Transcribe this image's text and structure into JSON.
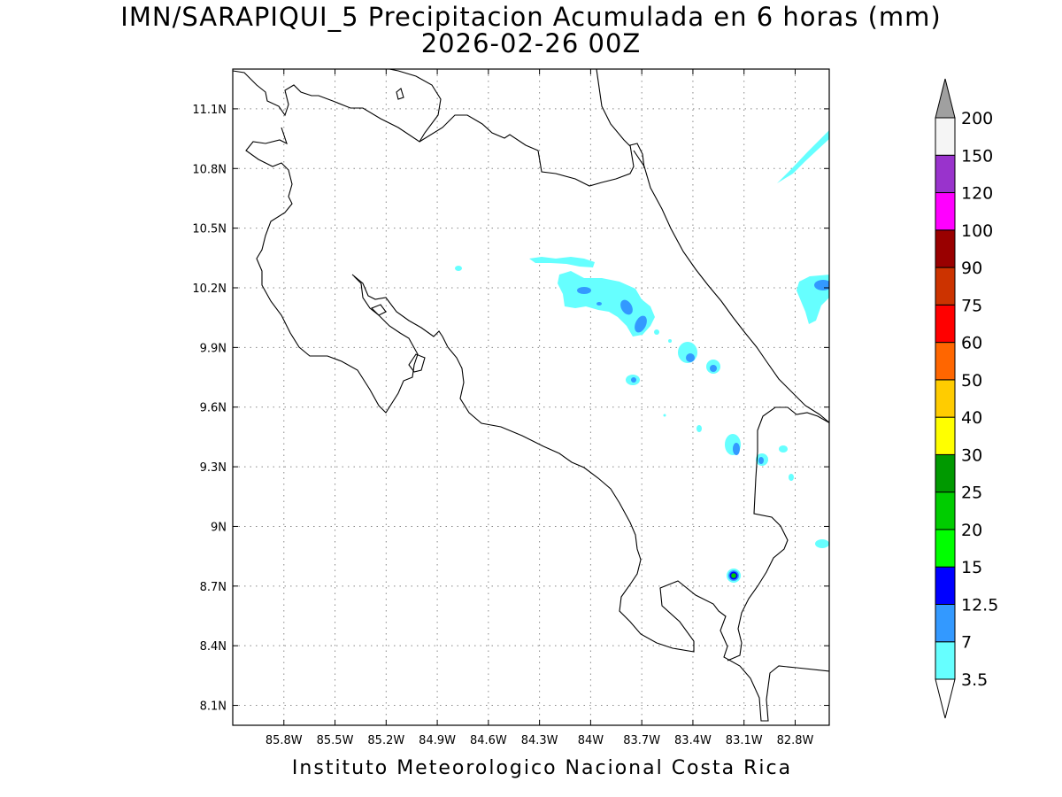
{
  "title": {
    "line1": "IMN/SARAPIQUI_5 Precipitacion Acumulada en 6 horas (mm)",
    "line2": "2026-02-26 00Z"
  },
  "footer": "Instituto Meteorologico Nacional Costa Rica",
  "map": {
    "lon_range": [
      -86.1,
      -82.6
    ],
    "lat_range": [
      8.0,
      11.3
    ],
    "grid": true,
    "x_tick_values": [
      -85.8,
      -85.5,
      -85.2,
      -84.9,
      -84.6,
      -84.3,
      -84.0,
      -83.7,
      -83.4,
      -83.1,
      -82.8
    ],
    "x_tick_labels": [
      "85.8W",
      "85.5W",
      "85.2W",
      "84.9W",
      "84.6W",
      "84.3W",
      "84W",
      "83.7W",
      "83.4W",
      "83.1W",
      "82.8W"
    ],
    "y_tick_values": [
      8.1,
      8.4,
      8.7,
      9.0,
      9.3,
      9.6,
      9.9,
      10.2,
      10.5,
      10.8,
      11.1
    ],
    "y_tick_labels": [
      "8.1N",
      "8.4N",
      "8.7N",
      "9N",
      "9.3N",
      "9.6N",
      "9.9N",
      "10.2N",
      "10.5N",
      "10.8N",
      "11.1N"
    ]
  },
  "colorbar": {
    "levels": [
      "3.5",
      "7",
      "12.5",
      "15",
      "20",
      "25",
      "30",
      "40",
      "50",
      "60",
      "75",
      "90",
      "100",
      "120",
      "150",
      "200"
    ],
    "colors": [
      "#66ffff",
      "#3399ff",
      "#0000ff",
      "#00ff00",
      "#00cc00",
      "#009900",
      "#ffff00",
      "#ffcc00",
      "#ff6600",
      "#ff0000",
      "#cc3300",
      "#990000",
      "#ff00ff",
      "#9933cc",
      "#f5f5f5"
    ],
    "over_color": "#a0a0a0",
    "under_color": "#ffffff"
  }
}
